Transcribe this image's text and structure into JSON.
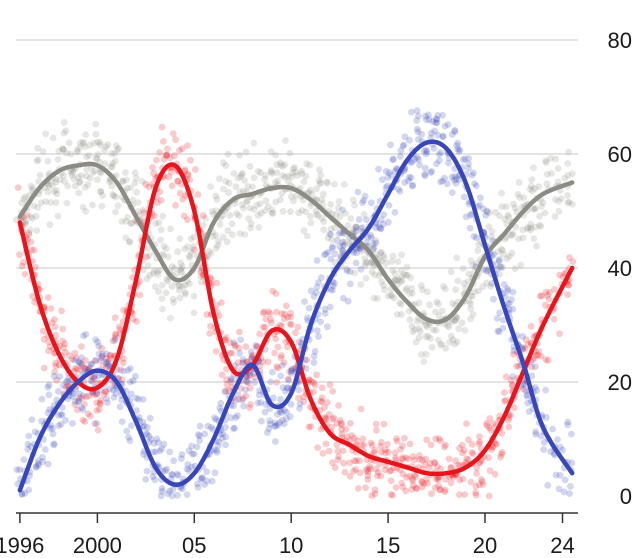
{
  "chart_data": {
    "type": "line",
    "title": "",
    "xlabel": "",
    "ylabel": "",
    "xlim": [
      1995.8,
      2024.8
    ],
    "ylim": [
      0,
      80
    ],
    "grid": "horizontal",
    "y_axis_position": "right",
    "y_ticks": [
      {
        "value": 0,
        "label": "0"
      },
      {
        "value": 20,
        "label": "20"
      },
      {
        "value": 40,
        "label": "40"
      },
      {
        "value": 60,
        "label": "60"
      },
      {
        "value": 80,
        "label": "80"
      }
    ],
    "x_ticks": [
      {
        "value": 1996,
        "label": "1996"
      },
      {
        "value": 2000,
        "label": "2000"
      },
      {
        "value": 2005,
        "label": "05"
      },
      {
        "value": 2010,
        "label": "10"
      },
      {
        "value": 2015,
        "label": "15"
      },
      {
        "value": 2020,
        "label": "20"
      },
      {
        "value": 2024,
        "label": "24"
      }
    ],
    "series": [
      {
        "color": "#8c8c84",
        "x": [
          1996,
          1997,
          1998,
          1999,
          2000,
          2001,
          2002,
          2003,
          2004,
          2005,
          2006,
          2007,
          2008,
          2009,
          2010,
          2011,
          2012,
          2013,
          2014,
          2015,
          2016,
          2017,
          2018,
          2019,
          2020,
          2021,
          2022,
          2023,
          2024.5
        ],
        "y": [
          49,
          54,
          57,
          58,
          58,
          55,
          49,
          43,
          38,
          40,
          48,
          52,
          53,
          54,
          54,
          52,
          49,
          46,
          43,
          38,
          34,
          31,
          31,
          35,
          42,
          46,
          50,
          53,
          55
        ]
      },
      {
        "color": "#e8141c",
        "x": [
          1996,
          1997,
          1998,
          1999,
          2000,
          2001,
          2002,
          2003,
          2004,
          2005,
          2006,
          2007,
          2008,
          2009,
          2010,
          2011,
          2012,
          2013,
          2014,
          2015,
          2016,
          2017,
          2018,
          2019,
          2020,
          2021,
          2022,
          2023,
          2024.5
        ],
        "y": [
          48,
          34,
          25,
          20,
          19,
          24,
          38,
          54,
          58,
          50,
          32,
          22,
          23,
          29,
          27,
          17,
          11,
          9,
          7,
          6,
          5,
          4,
          4,
          5,
          8,
          14,
          22,
          30,
          40
        ]
      },
      {
        "color": "#3746b8",
        "x": [
          1996,
          1997,
          1998,
          1999,
          2000,
          2001,
          2002,
          2003,
          2004,
          2005,
          2006,
          2007,
          2008,
          2009,
          2010,
          2011,
          2012,
          2013,
          2014,
          2015,
          2016,
          2017,
          2018,
          2019,
          2020,
          2021,
          2022,
          2023,
          2024.5
        ],
        "y": [
          1,
          10,
          16,
          20,
          22,
          20,
          13,
          5,
          2,
          4,
          10,
          18,
          23,
          16,
          18,
          30,
          38,
          43,
          47,
          53,
          59,
          62,
          61,
          55,
          44,
          33,
          23,
          12,
          4
        ]
      }
    ]
  }
}
